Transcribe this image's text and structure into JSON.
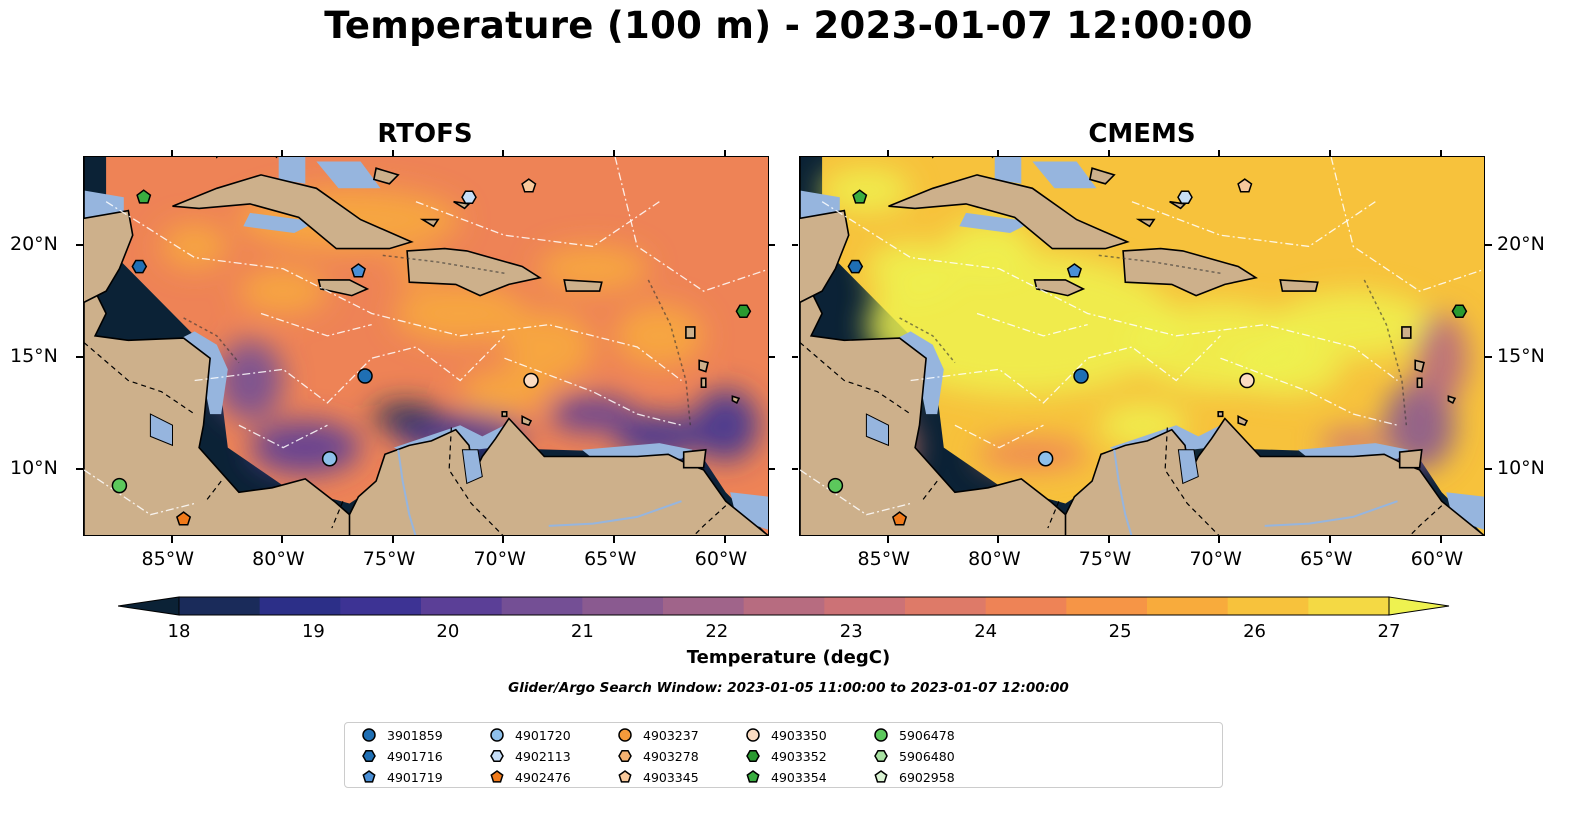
{
  "title": "Temperature (100 m) - 2023-01-07 12:00:00",
  "panels": [
    {
      "name": "RTOFS"
    },
    {
      "name": "CMEMS"
    }
  ],
  "axes": {
    "lon_ticks": [
      "85°W",
      "80°W",
      "75°W",
      "70°W",
      "65°W",
      "60°W"
    ],
    "lat_ticks": [
      "20°N",
      "15°N",
      "10°N"
    ],
    "lon_range": [
      -89,
      -58
    ],
    "lat_range": [
      7,
      24
    ]
  },
  "colorbar": {
    "label": "Temperature (degC)",
    "ticks": [
      "18",
      "19",
      "20",
      "21",
      "22",
      "23",
      "24",
      "25",
      "26",
      "27"
    ],
    "range": [
      18,
      27
    ],
    "colors": [
      "#0b2236",
      "#1a2b5a",
      "#2c2f88",
      "#3d3394",
      "#5b3f97",
      "#744f95",
      "#8a5a90",
      "#a0648a",
      "#b76c80",
      "#cc7276",
      "#de7a68",
      "#ee8356",
      "#f69546",
      "#f8ab3c",
      "#f7c23c",
      "#f4d944",
      "#eef250"
    ]
  },
  "search_window": "Glider/Argo Search Window: 2023-01-05 11:00:00 to 2023-01-07 12:00:00",
  "legend": [
    {
      "id": "3901859",
      "marker": "circle",
      "color": "#1f6fb4"
    },
    {
      "id": "4901716",
      "marker": "hexagon",
      "color": "#1f6fb4"
    },
    {
      "id": "4901719",
      "marker": "pentagon",
      "color": "#4a8fd6"
    },
    {
      "id": "4901720",
      "marker": "circle",
      "color": "#8ec0ea"
    },
    {
      "id": "4902113",
      "marker": "hexagon",
      "color": "#c6def7"
    },
    {
      "id": "4902476",
      "marker": "pentagon",
      "color": "#f07a1a"
    },
    {
      "id": "4903237",
      "marker": "circle",
      "color": "#f59a3b"
    },
    {
      "id": "4903278",
      "marker": "hexagon",
      "color": "#f5b271"
    },
    {
      "id": "4903345",
      "marker": "pentagon",
      "color": "#f8c99c"
    },
    {
      "id": "4903350",
      "marker": "circle",
      "color": "#fbdcc2"
    },
    {
      "id": "4903352",
      "marker": "hexagon",
      "color": "#2a9a30"
    },
    {
      "id": "4903354",
      "marker": "pentagon",
      "color": "#3aad40"
    },
    {
      "id": "5906478",
      "marker": "circle",
      "color": "#5cc85c"
    },
    {
      "id": "5906480",
      "marker": "hexagon",
      "color": "#a8e2a2"
    },
    {
      "id": "6902958",
      "marker": "pentagon",
      "color": "#daf3d3"
    }
  ],
  "floats": [
    {
      "id": "4903354",
      "lon": -86.3,
      "lat": 22.2
    },
    {
      "id": "4901716",
      "lon": -86.5,
      "lat": 19.1
    },
    {
      "id": "4901719",
      "lon": -76.6,
      "lat": 18.9
    },
    {
      "id": "4902113",
      "lon": -71.6,
      "lat": 22.2
    },
    {
      "id": "4903345",
      "lon": -68.9,
      "lat": 22.7
    },
    {
      "id": "4903352",
      "lon": -59.2,
      "lat": 17.1
    },
    {
      "id": "3901859",
      "lon": -76.3,
      "lat": 14.2
    },
    {
      "id": "4903350",
      "lon": -68.8,
      "lat": 14.0
    },
    {
      "id": "4901720",
      "lon": -77.9,
      "lat": 10.5
    },
    {
      "id": "5906478",
      "lon": -87.4,
      "lat": 9.3
    },
    {
      "id": "4902476",
      "lon": -84.5,
      "lat": 7.8
    }
  ]
}
